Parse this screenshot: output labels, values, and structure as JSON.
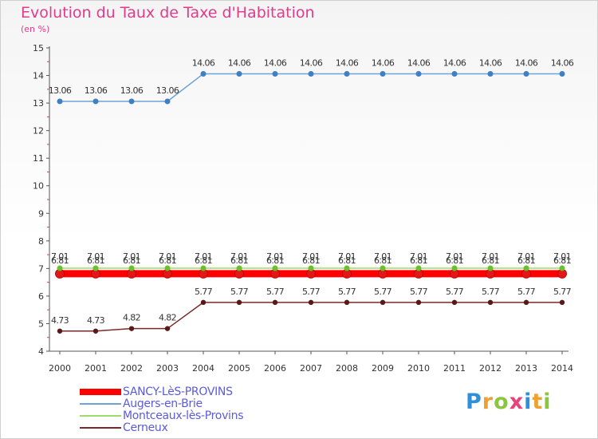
{
  "chart_data": {
    "type": "line",
    "title": "Evolution du Taux de Taxe d'Habitation",
    "subtitle": "(en %)",
    "categories": [
      "2000",
      "2001",
      "2002",
      "2003",
      "2004",
      "2005",
      "2006",
      "2007",
      "2008",
      "2009",
      "2010",
      "2011",
      "2012",
      "2013",
      "2014"
    ],
    "ylim": [
      4,
      15
    ],
    "yticks": [
      "4",
      "5",
      "6",
      "7",
      "8",
      "9",
      "10",
      "11",
      "12",
      "13",
      "14",
      "15"
    ],
    "grid": false,
    "legend_position": "bottom-left",
    "series": [
      {
        "name": "SANCY-LèS-PROVINS",
        "color": "#ff0000",
        "values": [
          6.81,
          6.81,
          6.81,
          6.81,
          6.81,
          6.81,
          6.81,
          6.81,
          6.81,
          6.81,
          6.81,
          6.81,
          6.81,
          6.81,
          6.81
        ],
        "labels": [
          "6.81",
          "6.81",
          "6.81",
          "6.81",
          "6.81",
          "6.81",
          "6.81",
          "6.81",
          "6.81",
          "6.81",
          "6.81",
          "6.81",
          "6.81",
          "6.81",
          "6.81"
        ]
      },
      {
        "name": "Augers-en-Brie",
        "color": "#6fa3d6",
        "values": [
          13.06,
          13.06,
          13.06,
          13.06,
          14.06,
          14.06,
          14.06,
          14.06,
          14.06,
          14.06,
          14.06,
          14.06,
          14.06,
          14.06,
          14.06
        ],
        "labels": [
          "13.06",
          "13.06",
          "13.06",
          "13.06",
          "14.06",
          "14.06",
          "14.06",
          "14.06",
          "14.06",
          "14.06",
          "14.06",
          "14.06",
          "14.06",
          "14.06",
          "14.06"
        ]
      },
      {
        "name": "Montceaux-lès-Provins",
        "color": "#9ddc6a",
        "values": [
          7.01,
          7.01,
          7.01,
          7.01,
          7.01,
          7.01,
          7.01,
          7.01,
          7.01,
          7.01,
          7.01,
          7.01,
          7.01,
          7.01,
          7.01
        ],
        "labels": [
          "7.01",
          "7.01",
          "7.01",
          "7.01",
          "7.01",
          "7.01",
          "7.01",
          "7.01",
          "7.01",
          "7.01",
          "7.01",
          "7.01",
          "7.01",
          "7.01",
          "7.01"
        ]
      },
      {
        "name": "Cerneux",
        "color": "#7a2a2a",
        "values": [
          4.73,
          4.73,
          4.82,
          4.82,
          5.77,
          5.77,
          5.77,
          5.77,
          5.77,
          5.77,
          5.77,
          5.77,
          5.77,
          5.77,
          5.77
        ],
        "labels": [
          "4.73",
          "4.73",
          "4.82",
          "4.82",
          "5.77",
          "5.77",
          "5.77",
          "5.77",
          "5.77",
          "5.77",
          "5.77",
          "5.77",
          "5.77",
          "5.77",
          "5.77"
        ]
      }
    ]
  },
  "logo": {
    "text": "Proxiti",
    "colors": [
      "#2f8fd8",
      "#f0a030",
      "#8cc63f",
      "#e8437a",
      "#2f8fd8",
      "#f0a030",
      "#8cc63f"
    ]
  }
}
